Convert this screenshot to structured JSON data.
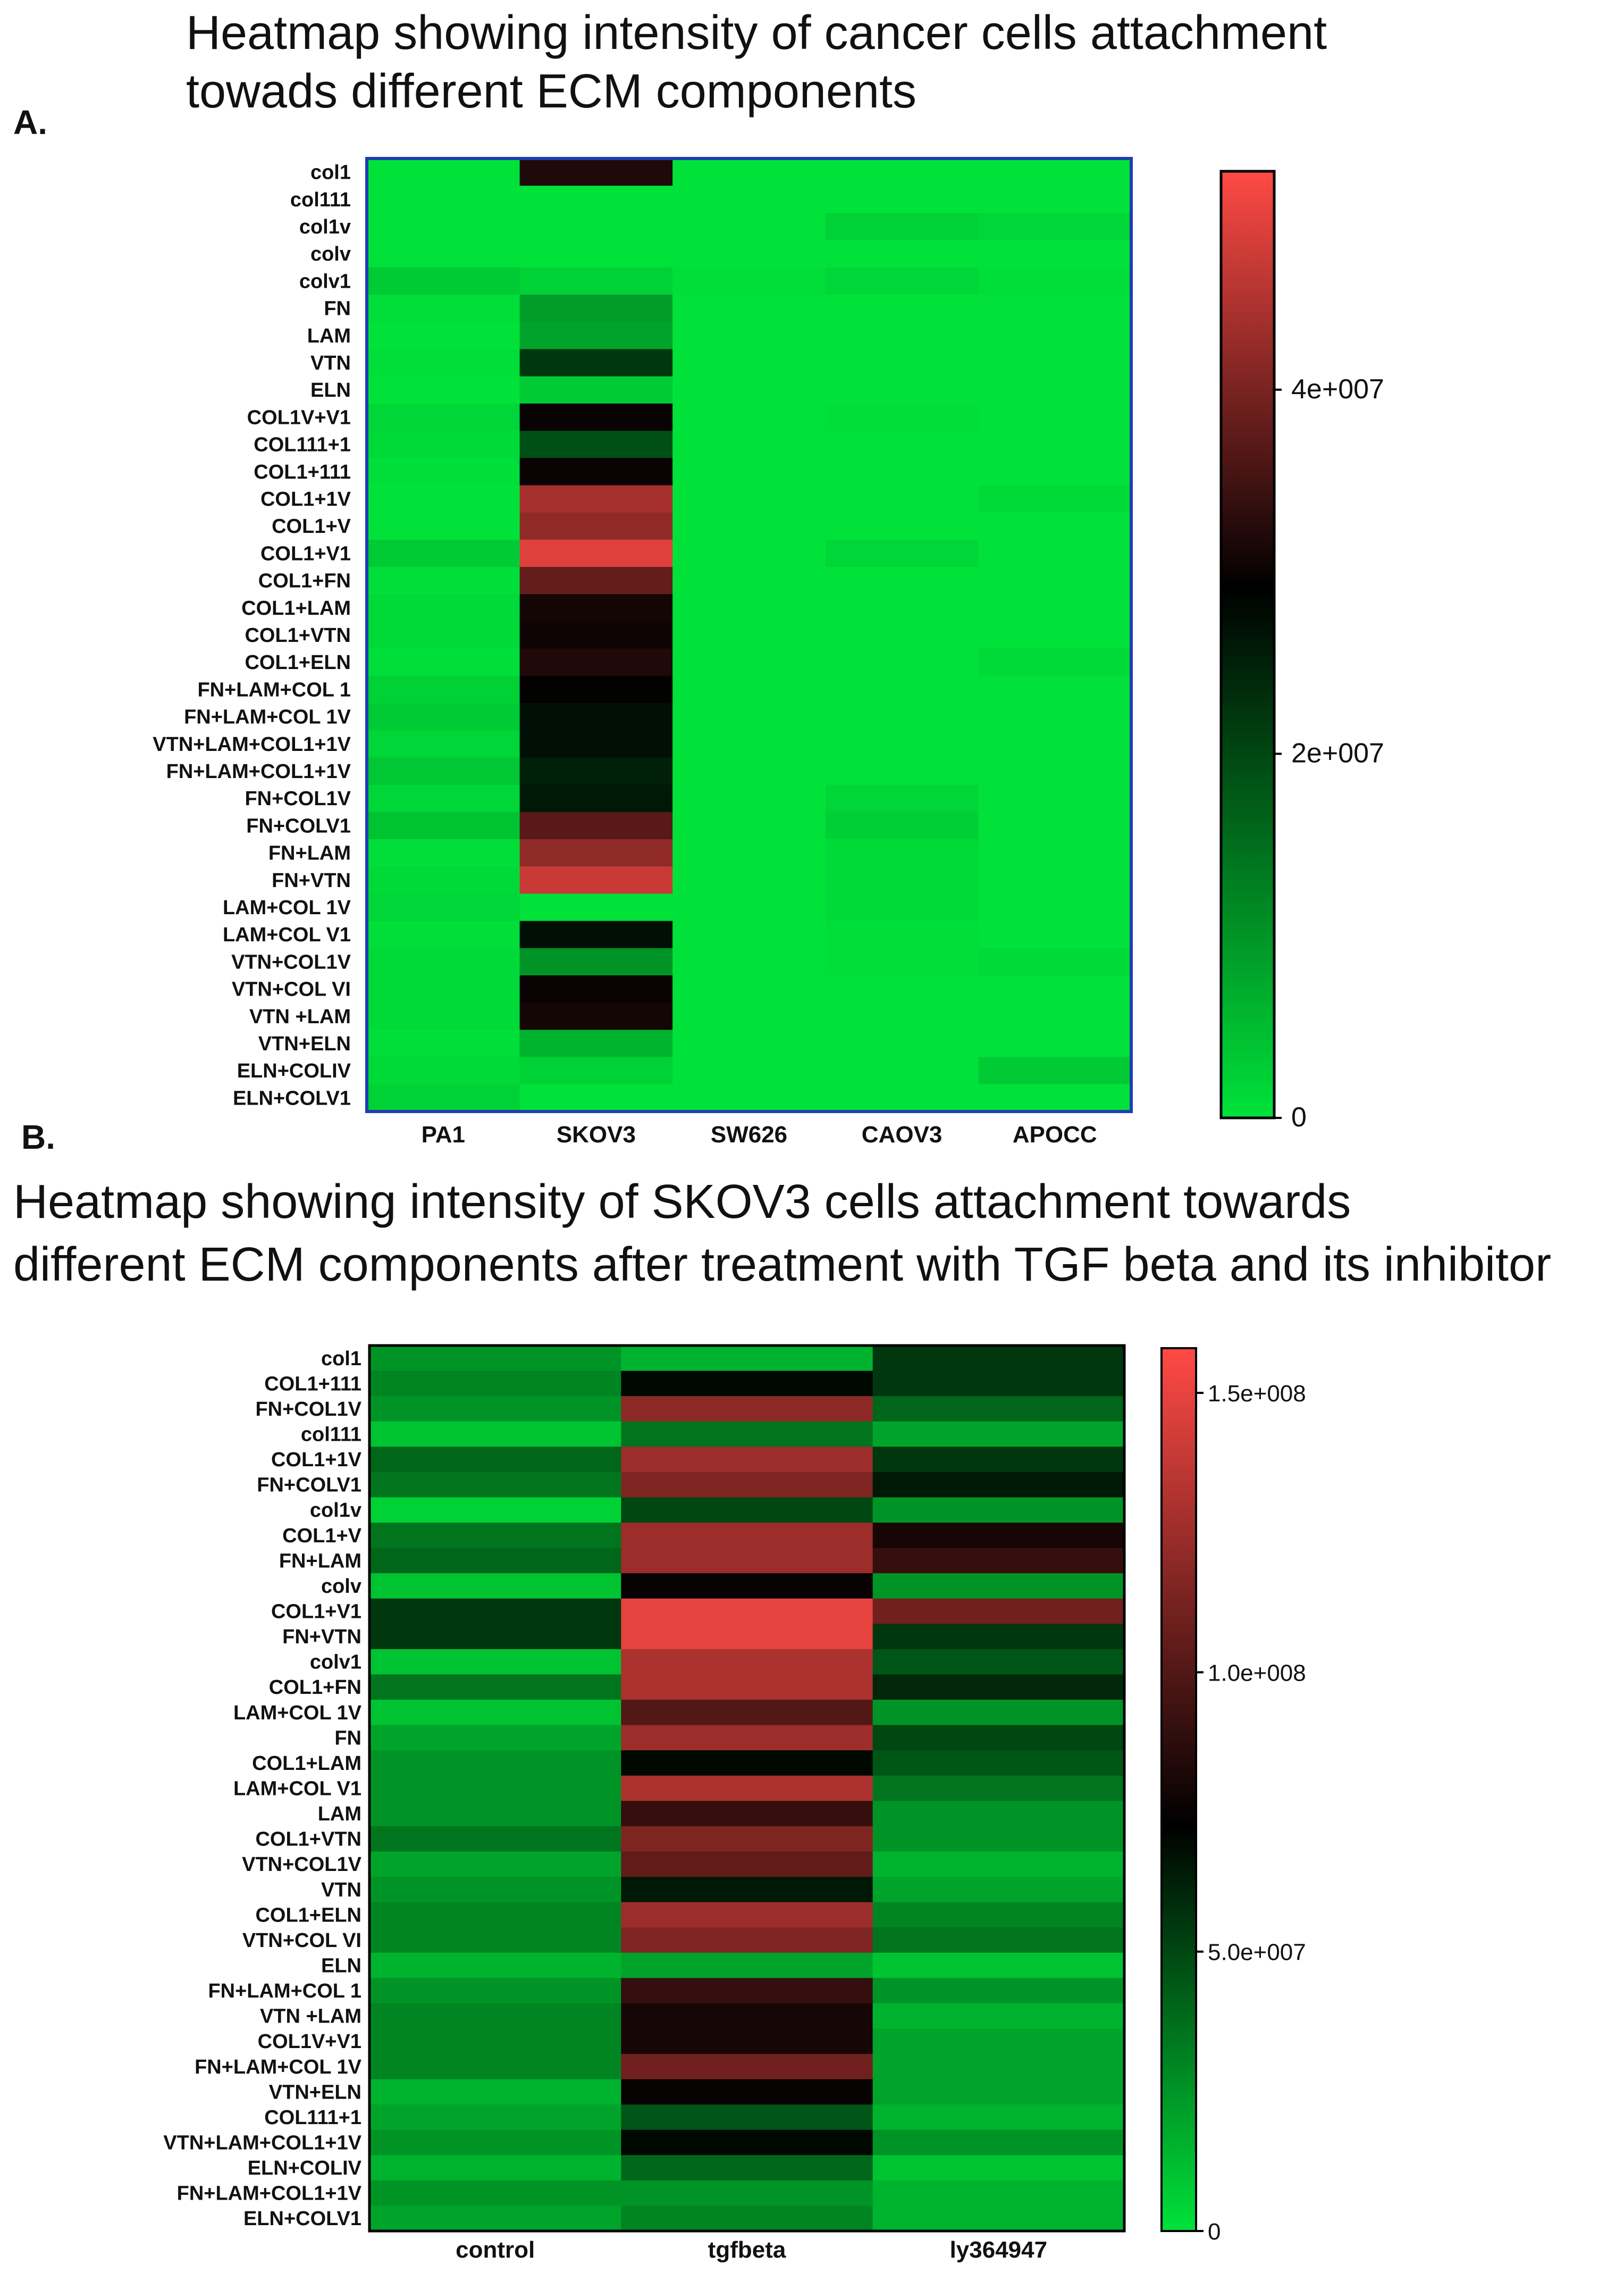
{
  "panels": [
    {
      "label": "A.",
      "title_lines": [
        "Heatmap showing intensity of cancer cells attachment",
        "towads different ECM components"
      ],
      "colorbar": {
        "colors": [
          "#00e23a",
          "#000000",
          "#ff4a45"
        ],
        "ticks": [
          {
            "label": "4e+007",
            "value": 40000000
          },
          {
            "label": "2e+007",
            "value": 20000000
          },
          {
            "label": "0",
            "value": 0
          }
        ]
      }
    },
    {
      "label": "B.",
      "title_lines": [
        "Heatmap showing  intensity of SKOV3 cells attachment towards",
        "different ECM components after treatment with TGF beta and its inhibitor"
      ],
      "colorbar": {
        "colors": [
          "#00e23a",
          "#000000",
          "#ff4a45"
        ],
        "ticks": [
          {
            "label": "1.5e+008",
            "value": 150000000
          },
          {
            "label": "1.0e+008",
            "value": 100000000
          },
          {
            "label": "5.0e+007",
            "value": 50000000
          },
          {
            "label": "0",
            "value": 0
          }
        ]
      }
    }
  ],
  "chart_data": [
    {
      "type": "heatmap",
      "title": "Heatmap showing intensity of cancer cells attachment towads different ECM components",
      "columns": [
        "PA1",
        "SKOV3",
        "SW626",
        "CAOV3",
        "APOCC"
      ],
      "rows": [
        "col1",
        "col111",
        "col1v",
        "colv",
        "colv1",
        "FN",
        "LAM",
        "VTN",
        "ELN",
        "COL1V+V1",
        "COL111+1",
        "COL1+111",
        "COL1+1V",
        "COL1+V",
        "COL1+V1",
        "COL1+FN",
        "COL1+LAM",
        "COL1+VTN",
        "COL1+ELN",
        "FN+LAM+COL 1",
        "FN+LAM+COL 1V",
        "VTN+LAM+COL1+1V",
        "FN+LAM+COL1+1V",
        "FN+COL1V",
        "FN+COLV1",
        "FN+LAM",
        "FN+VTN",
        "LAM+COL 1V",
        "LAM+COL V1",
        "VTN+COL1V",
        "VTN+COL VI",
        "VTN +LAM",
        "VTN+ELN",
        "ELN+COLIV",
        "ELN+COLV1"
      ],
      "values": [
        [
          0,
          32000000,
          0,
          0,
          0
        ],
        [
          0,
          0,
          0,
          0,
          0
        ],
        [
          0,
          0,
          0,
          2000000,
          1500000
        ],
        [
          0,
          0,
          0,
          0,
          0
        ],
        [
          3000000,
          2000000,
          500000,
          1500000,
          500000
        ],
        [
          500000,
          9000000,
          0,
          0,
          0
        ],
        [
          0,
          8000000,
          0,
          0,
          0
        ],
        [
          500000,
          22000000,
          0,
          0,
          0
        ],
        [
          0,
          3000000,
          0,
          0,
          0
        ],
        [
          1500000,
          30000000,
          0,
          500000,
          0
        ],
        [
          1000000,
          19000000,
          0,
          0,
          0
        ],
        [
          500000,
          30000000,
          0,
          0,
          0
        ],
        [
          0,
          44000000,
          0,
          0,
          1000000
        ],
        [
          0,
          42000000,
          0,
          0,
          0
        ],
        [
          3000000,
          49000000,
          0,
          1500000,
          0
        ],
        [
          500000,
          38000000,
          0,
          0,
          0
        ],
        [
          1000000,
          31000000,
          0,
          0,
          0
        ],
        [
          1000000,
          30500000,
          0,
          0,
          0
        ],
        [
          500000,
          32000000,
          0,
          0,
          1000000
        ],
        [
          2000000,
          29500000,
          0,
          0,
          0
        ],
        [
          3000000,
          27000000,
          0,
          0,
          0
        ],
        [
          1500000,
          27000000,
          0,
          0,
          0
        ],
        [
          3500000,
          25000000,
          0,
          0,
          0
        ],
        [
          1500000,
          26000000,
          0,
          1500000,
          0
        ],
        [
          4000000,
          37000000,
          0,
          2500000,
          0
        ],
        [
          500000,
          42000000,
          0,
          1000000,
          0
        ],
        [
          1000000,
          47000000,
          0,
          1000000,
          0
        ],
        [
          1500000,
          0,
          0,
          1000000,
          0
        ],
        [
          500000,
          27000000,
          0,
          500000,
          0
        ],
        [
          1000000,
          10000000,
          0,
          500000,
          1000000
        ],
        [
          1000000,
          30000000,
          0,
          0,
          0
        ],
        [
          1000000,
          31000000,
          0,
          0,
          0
        ],
        [
          500000,
          6000000,
          0,
          0,
          0
        ],
        [
          1000000,
          2000000,
          0,
          0,
          3000000
        ],
        [
          2000000,
          0,
          0,
          0,
          0
        ]
      ],
      "colorbar_range": [
        0,
        52000000
      ],
      "colorbar_ticks": [
        "4e+007",
        "2e+007",
        "0"
      ]
    },
    {
      "type": "heatmap",
      "title": "Heatmap showing  intensity of SKOV3 cells attachment towards different ECM components after treatment with TGF beta and its inhibitor",
      "columns": [
        "control",
        "tgfbeta",
        "ly364947"
      ],
      "rows": [
        "col1",
        "COL1+111",
        "FN+COL1V",
        "col111",
        "COL1+1V",
        "FN+COLV1",
        "col1v",
        "COL1+V",
        "FN+LAM",
        "colv",
        "COL1+V1",
        "FN+VTN",
        "colv1",
        "COL1+FN",
        "LAM+COL 1V",
        "FN",
        "COL1+LAM",
        "LAM+COL V1",
        "LAM",
        "COL1+VTN",
        "VTN+COL1V",
        "VTN",
        "COL1+ELN",
        "VTN+COL VI",
        "ELN",
        "FN+LAM+COL 1",
        "VTN +LAM",
        "COL1V+V1",
        "FN+LAM+COL 1V",
        "VTN+ELN",
        "COL111+1",
        "VTN+LAM+COL1+1V",
        "ELN+COLIV",
        "FN+LAM+COL1+1V",
        "ELN+COLV1"
      ],
      "values": [
        [
          25000000,
          15000000,
          55000000
        ],
        [
          30000000,
          70000000,
          55000000
        ],
        [
          25000000,
          120000000,
          40000000
        ],
        [
          10000000,
          35000000,
          20000000
        ],
        [
          40000000,
          125000000,
          55000000
        ],
        [
          35000000,
          115000000,
          65000000
        ],
        [
          5000000,
          50000000,
          25000000
        ],
        [
          35000000,
          125000000,
          80000000
        ],
        [
          40000000,
          125000000,
          90000000
        ],
        [
          10000000,
          75000000,
          25000000
        ],
        [
          55000000,
          150000000,
          110000000
        ],
        [
          55000000,
          150000000,
          55000000
        ],
        [
          10000000,
          130000000,
          45000000
        ],
        [
          35000000,
          130000000,
          60000000
        ],
        [
          10000000,
          100000000,
          25000000
        ],
        [
          20000000,
          125000000,
          50000000
        ],
        [
          25000000,
          70000000,
          45000000
        ],
        [
          25000000,
          130000000,
          35000000
        ],
        [
          25000000,
          90000000,
          25000000
        ],
        [
          35000000,
          115000000,
          25000000
        ],
        [
          20000000,
          105000000,
          15000000
        ],
        [
          25000000,
          65000000,
          20000000
        ],
        [
          30000000,
          125000000,
          30000000
        ],
        [
          30000000,
          115000000,
          35000000
        ],
        [
          15000000,
          20000000,
          10000000
        ],
        [
          25000000,
          90000000,
          25000000
        ],
        [
          30000000,
          80000000,
          15000000
        ],
        [
          30000000,
          80000000,
          20000000
        ],
        [
          30000000,
          110000000,
          20000000
        ],
        [
          15000000,
          75000000,
          20000000
        ],
        [
          20000000,
          45000000,
          15000000
        ],
        [
          25000000,
          70000000,
          25000000
        ],
        [
          15000000,
          40000000,
          10000000
        ],
        [
          25000000,
          25000000,
          15000000
        ],
        [
          20000000,
          30000000,
          15000000
        ]
      ],
      "colorbar_range": [
        0,
        158000000
      ],
      "colorbar_ticks": [
        "1.5e+008",
        "1.0e+008",
        "5.0e+007",
        "0"
      ]
    }
  ]
}
